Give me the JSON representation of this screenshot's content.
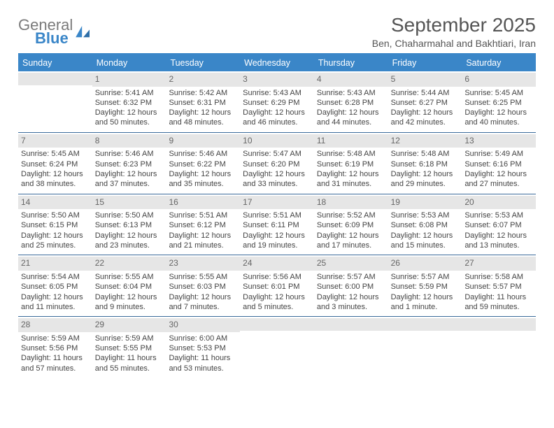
{
  "brand": {
    "word1": "General",
    "word2": "Blue"
  },
  "title": "September 2025",
  "subtitle": "Ben, Chaharmahal and Bakhtiari, Iran",
  "colors": {
    "accent": "#3a86c8",
    "header_text": "#ffffff",
    "row_divider": "#3a6a9a",
    "daynum_bg": "#e6e6e6",
    "body_text": "#444444",
    "title_text": "#555555"
  },
  "day_headers": [
    "Sunday",
    "Monday",
    "Tuesday",
    "Wednesday",
    "Thursday",
    "Friday",
    "Saturday"
  ],
  "weeks": [
    [
      {
        "num": "",
        "sunrise": "",
        "sunset": "",
        "daylight": ""
      },
      {
        "num": "1",
        "sunrise": "Sunrise: 5:41 AM",
        "sunset": "Sunset: 6:32 PM",
        "daylight": "Daylight: 12 hours and 50 minutes."
      },
      {
        "num": "2",
        "sunrise": "Sunrise: 5:42 AM",
        "sunset": "Sunset: 6:31 PM",
        "daylight": "Daylight: 12 hours and 48 minutes."
      },
      {
        "num": "3",
        "sunrise": "Sunrise: 5:43 AM",
        "sunset": "Sunset: 6:29 PM",
        "daylight": "Daylight: 12 hours and 46 minutes."
      },
      {
        "num": "4",
        "sunrise": "Sunrise: 5:43 AM",
        "sunset": "Sunset: 6:28 PM",
        "daylight": "Daylight: 12 hours and 44 minutes."
      },
      {
        "num": "5",
        "sunrise": "Sunrise: 5:44 AM",
        "sunset": "Sunset: 6:27 PM",
        "daylight": "Daylight: 12 hours and 42 minutes."
      },
      {
        "num": "6",
        "sunrise": "Sunrise: 5:45 AM",
        "sunset": "Sunset: 6:25 PM",
        "daylight": "Daylight: 12 hours and 40 minutes."
      }
    ],
    [
      {
        "num": "7",
        "sunrise": "Sunrise: 5:45 AM",
        "sunset": "Sunset: 6:24 PM",
        "daylight": "Daylight: 12 hours and 38 minutes."
      },
      {
        "num": "8",
        "sunrise": "Sunrise: 5:46 AM",
        "sunset": "Sunset: 6:23 PM",
        "daylight": "Daylight: 12 hours and 37 minutes."
      },
      {
        "num": "9",
        "sunrise": "Sunrise: 5:46 AM",
        "sunset": "Sunset: 6:22 PM",
        "daylight": "Daylight: 12 hours and 35 minutes."
      },
      {
        "num": "10",
        "sunrise": "Sunrise: 5:47 AM",
        "sunset": "Sunset: 6:20 PM",
        "daylight": "Daylight: 12 hours and 33 minutes."
      },
      {
        "num": "11",
        "sunrise": "Sunrise: 5:48 AM",
        "sunset": "Sunset: 6:19 PM",
        "daylight": "Daylight: 12 hours and 31 minutes."
      },
      {
        "num": "12",
        "sunrise": "Sunrise: 5:48 AM",
        "sunset": "Sunset: 6:18 PM",
        "daylight": "Daylight: 12 hours and 29 minutes."
      },
      {
        "num": "13",
        "sunrise": "Sunrise: 5:49 AM",
        "sunset": "Sunset: 6:16 PM",
        "daylight": "Daylight: 12 hours and 27 minutes."
      }
    ],
    [
      {
        "num": "14",
        "sunrise": "Sunrise: 5:50 AM",
        "sunset": "Sunset: 6:15 PM",
        "daylight": "Daylight: 12 hours and 25 minutes."
      },
      {
        "num": "15",
        "sunrise": "Sunrise: 5:50 AM",
        "sunset": "Sunset: 6:13 PM",
        "daylight": "Daylight: 12 hours and 23 minutes."
      },
      {
        "num": "16",
        "sunrise": "Sunrise: 5:51 AM",
        "sunset": "Sunset: 6:12 PM",
        "daylight": "Daylight: 12 hours and 21 minutes."
      },
      {
        "num": "17",
        "sunrise": "Sunrise: 5:51 AM",
        "sunset": "Sunset: 6:11 PM",
        "daylight": "Daylight: 12 hours and 19 minutes."
      },
      {
        "num": "18",
        "sunrise": "Sunrise: 5:52 AM",
        "sunset": "Sunset: 6:09 PM",
        "daylight": "Daylight: 12 hours and 17 minutes."
      },
      {
        "num": "19",
        "sunrise": "Sunrise: 5:53 AM",
        "sunset": "Sunset: 6:08 PM",
        "daylight": "Daylight: 12 hours and 15 minutes."
      },
      {
        "num": "20",
        "sunrise": "Sunrise: 5:53 AM",
        "sunset": "Sunset: 6:07 PM",
        "daylight": "Daylight: 12 hours and 13 minutes."
      }
    ],
    [
      {
        "num": "21",
        "sunrise": "Sunrise: 5:54 AM",
        "sunset": "Sunset: 6:05 PM",
        "daylight": "Daylight: 12 hours and 11 minutes."
      },
      {
        "num": "22",
        "sunrise": "Sunrise: 5:55 AM",
        "sunset": "Sunset: 6:04 PM",
        "daylight": "Daylight: 12 hours and 9 minutes."
      },
      {
        "num": "23",
        "sunrise": "Sunrise: 5:55 AM",
        "sunset": "Sunset: 6:03 PM",
        "daylight": "Daylight: 12 hours and 7 minutes."
      },
      {
        "num": "24",
        "sunrise": "Sunrise: 5:56 AM",
        "sunset": "Sunset: 6:01 PM",
        "daylight": "Daylight: 12 hours and 5 minutes."
      },
      {
        "num": "25",
        "sunrise": "Sunrise: 5:57 AM",
        "sunset": "Sunset: 6:00 PM",
        "daylight": "Daylight: 12 hours and 3 minutes."
      },
      {
        "num": "26",
        "sunrise": "Sunrise: 5:57 AM",
        "sunset": "Sunset: 5:59 PM",
        "daylight": "Daylight: 12 hours and 1 minute."
      },
      {
        "num": "27",
        "sunrise": "Sunrise: 5:58 AM",
        "sunset": "Sunset: 5:57 PM",
        "daylight": "Daylight: 11 hours and 59 minutes."
      }
    ],
    [
      {
        "num": "28",
        "sunrise": "Sunrise: 5:59 AM",
        "sunset": "Sunset: 5:56 PM",
        "daylight": "Daylight: 11 hours and 57 minutes."
      },
      {
        "num": "29",
        "sunrise": "Sunrise: 5:59 AM",
        "sunset": "Sunset: 5:55 PM",
        "daylight": "Daylight: 11 hours and 55 minutes."
      },
      {
        "num": "30",
        "sunrise": "Sunrise: 6:00 AM",
        "sunset": "Sunset: 5:53 PM",
        "daylight": "Daylight: 11 hours and 53 minutes."
      },
      {
        "num": "",
        "sunrise": "",
        "sunset": "",
        "daylight": ""
      },
      {
        "num": "",
        "sunrise": "",
        "sunset": "",
        "daylight": ""
      },
      {
        "num": "",
        "sunrise": "",
        "sunset": "",
        "daylight": ""
      },
      {
        "num": "",
        "sunrise": "",
        "sunset": "",
        "daylight": ""
      }
    ]
  ]
}
